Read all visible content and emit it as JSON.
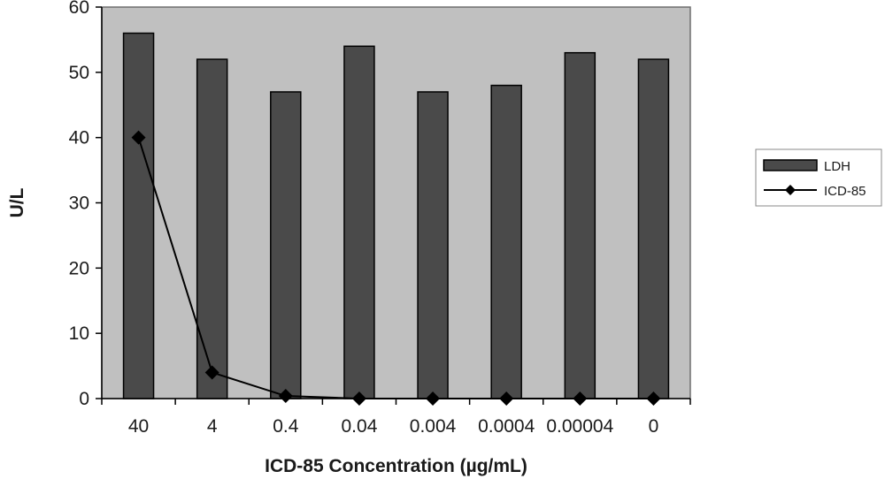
{
  "chart_data": {
    "type": "bar",
    "title": "",
    "xlabel": "ICD-85 Concentration (µg/mL)",
    "ylabel": "U/L",
    "categories": [
      "40",
      "4",
      "0.4",
      "0.04",
      "0.004",
      "0.0004",
      "0.00004",
      "0"
    ],
    "ylim": [
      0,
      60
    ],
    "yticks": [
      0,
      10,
      20,
      30,
      40,
      50,
      60
    ],
    "ytick_labels": [
      "0",
      "10",
      "20",
      "30",
      "40",
      "50",
      "60"
    ],
    "grid": false,
    "legend_position": "right",
    "series": [
      {
        "name": "LDH",
        "type": "bar",
        "values": [
          56,
          52,
          47,
          54,
          47,
          48,
          53,
          52
        ],
        "color": "#4a4a4a"
      },
      {
        "name": "ICD-85",
        "type": "line",
        "marker": "diamond",
        "values": [
          40,
          4,
          0.4,
          0,
          0,
          0,
          0,
          0
        ],
        "color": "#000000"
      }
    ],
    "plot_background": "#c0c0c0"
  }
}
